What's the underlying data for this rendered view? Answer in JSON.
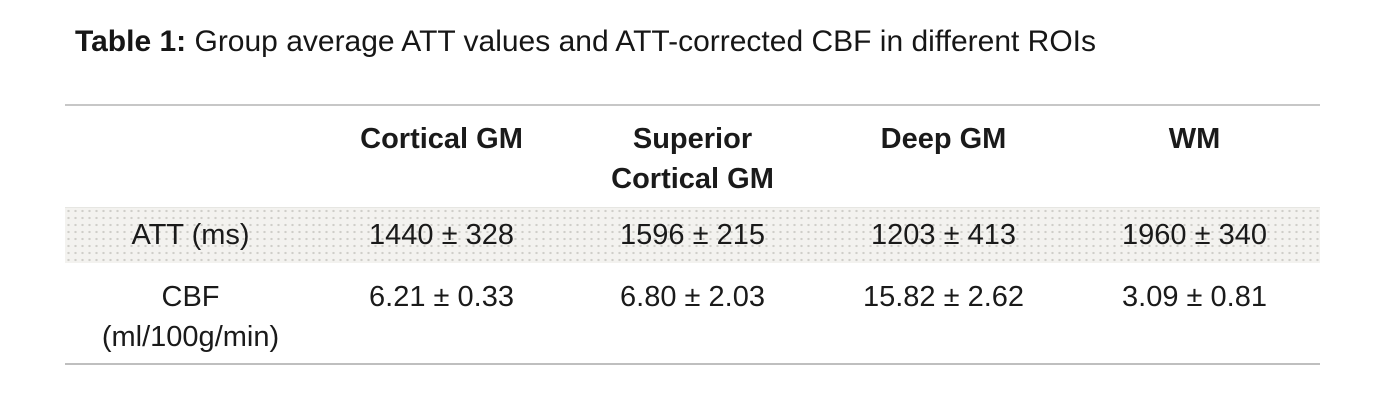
{
  "caption": {
    "label": "Table 1:",
    "text": "Group average ATT values and ATT-corrected CBF in different ROIs"
  },
  "table": {
    "columns": [
      "",
      "Cortical GM",
      "Superior Cortical GM",
      "Deep GM",
      "WM"
    ],
    "rows": [
      {
        "label": "ATT (ms)",
        "values": [
          "1440 ± 328",
          "1596 ± 215",
          "1203 ± 413",
          "1960 ± 340"
        ]
      },
      {
        "label": "CBF (ml/100g/min)",
        "values": [
          "6.21 ± 0.33",
          "6.80 ± 2.03",
          "15.82 ± 2.62",
          "3.09 ± 0.81"
        ]
      }
    ]
  },
  "colors": {
    "text": "#1a1a1a",
    "table_border_top": "#c7c7c7",
    "table_border_bottom": "#bfbfbf",
    "shaded_row_base": "#f3f2ef",
    "shaded_row_dots": "#cfcec9",
    "background": "#ffffff"
  }
}
